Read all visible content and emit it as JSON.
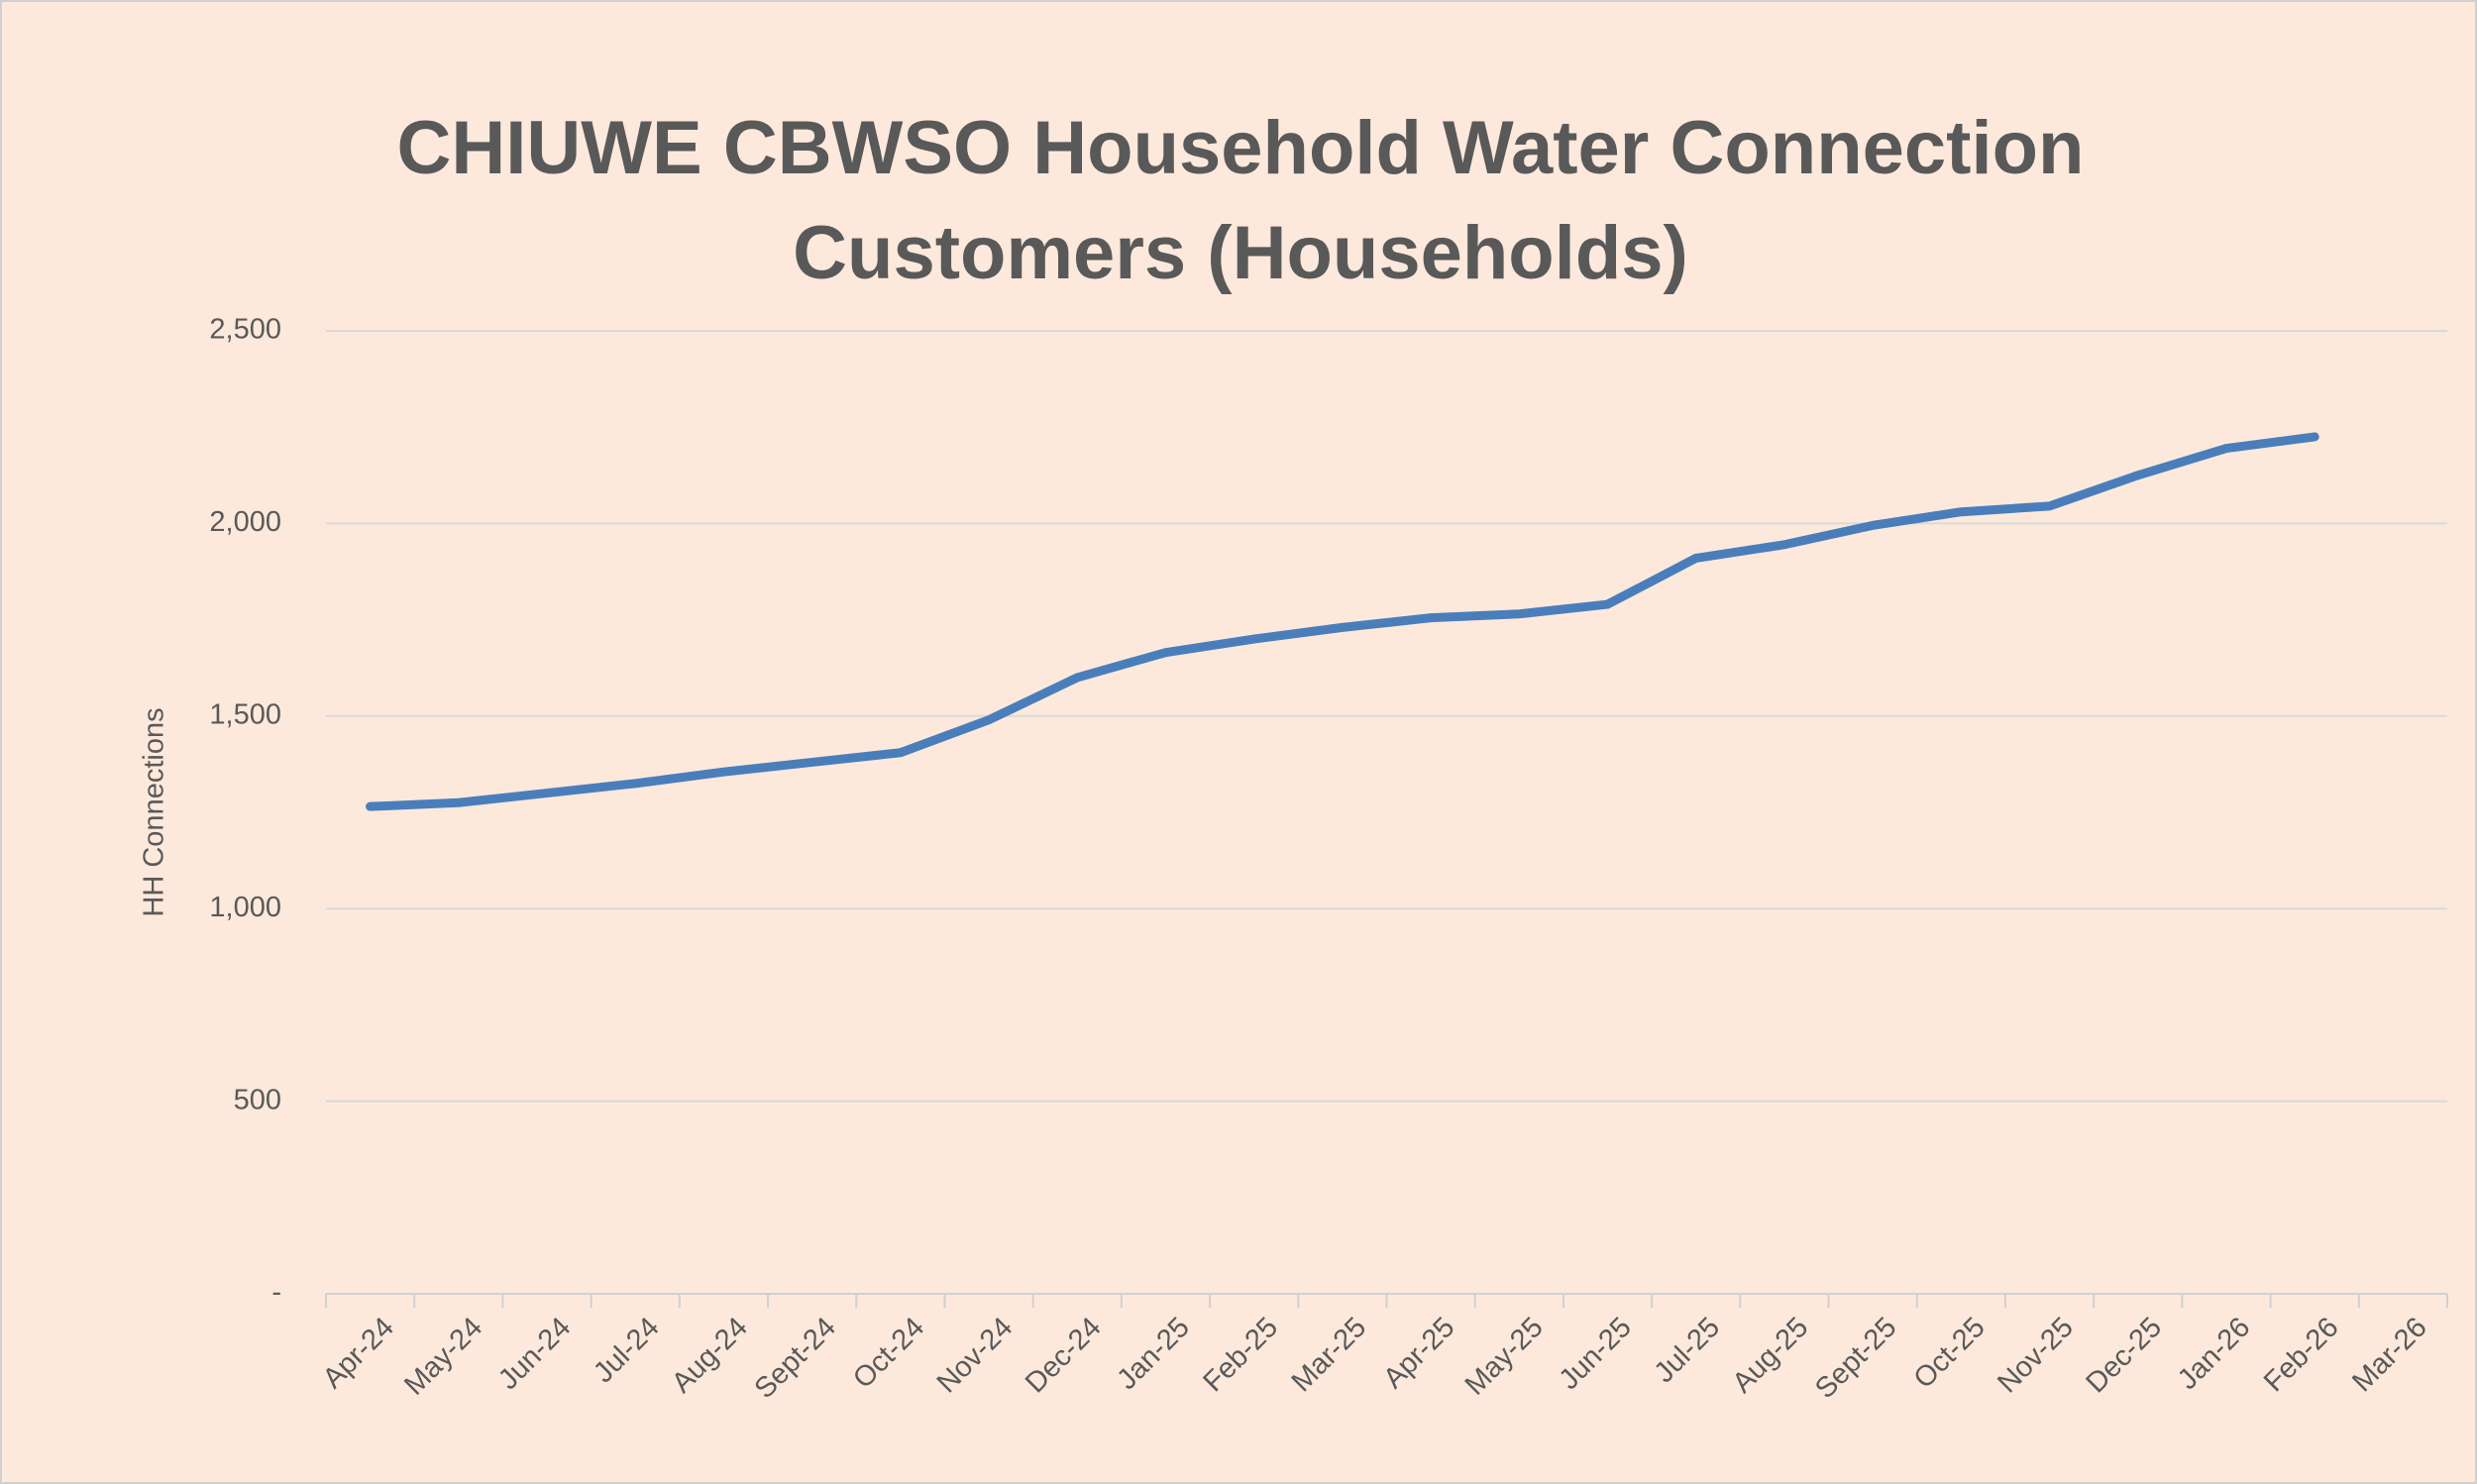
{
  "chart_data": {
    "type": "line",
    "title": "CHIUWE CBWSO Household  Water Connection Customers (Households)",
    "y_label": "HH Connections",
    "categories": [
      "Apr-24",
      "May-24",
      "Jun-24",
      "Jul-24",
      "Aug-24",
      "Sept-24",
      "Oct-24",
      "Nov-24",
      "Dec-24",
      "Jan-25",
      "Feb-25",
      "Mar-25",
      "Apr-25",
      "May-25",
      "Jun-25",
      "Jul-25",
      "Aug-25",
      "Sept-25",
      "Oct-25",
      "Nov-25",
      "Dec-25",
      "Jan-26",
      "Feb-26",
      "Mar-26"
    ],
    "series": [
      {
        "name": "HH Connections",
        "color": "#4a7ebb",
        "values": [
          1265,
          1275,
          1300,
          1325,
          1355,
          1380,
          1405,
          1490,
          1600,
          1665,
          1700,
          1730,
          1755,
          1765,
          1790,
          1910,
          1945,
          1995,
          2030,
          2045,
          2125,
          2195,
          2225,
          null
        ]
      }
    ],
    "ylim": [
      0,
      2500
    ],
    "yticks": [
      {
        "value": 0,
        "label": "-"
      },
      500,
      {
        "value": 1000,
        "label": "1,000"
      },
      {
        "value": 1500,
        "label": "1,500"
      },
      {
        "value": 2000,
        "label": "2,000"
      },
      {
        "value": 2500,
        "label": "2,500"
      }
    ],
    "grid": true
  }
}
